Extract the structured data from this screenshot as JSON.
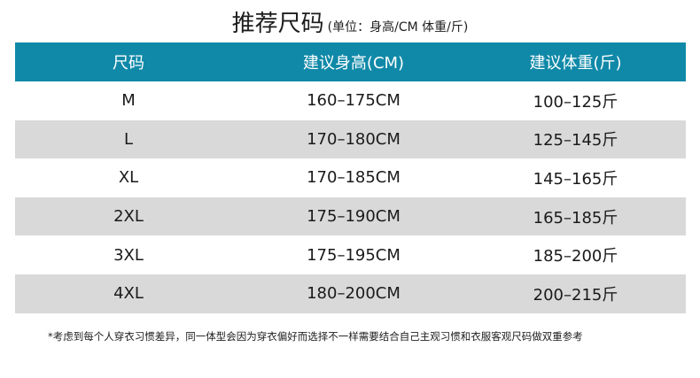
{
  "title": {
    "main": "推荐尺码",
    "sub": "(单位：身高/CM 体重/斤)"
  },
  "table": {
    "headers": [
      "尺码",
      "建议身高(CM)",
      "建议体重(斤)"
    ],
    "rows": [
      [
        "M",
        "160–175CM",
        "100–125斤"
      ],
      [
        "L",
        "170–180CM",
        "125–145斤"
      ],
      [
        "XL",
        "170–185CM",
        "145–165斤"
      ],
      [
        "2XL",
        "175–190CM",
        "165–185斤"
      ],
      [
        "3XL",
        "175–195CM",
        "185–200斤"
      ],
      [
        "4XL",
        "180–200CM",
        "200–215斤"
      ]
    ]
  },
  "colors": {
    "header_bg": "#1089a8",
    "header_text": "#ffffff",
    "row_shade": "#d9d9d9"
  },
  "note": "*考虑到每个人穿衣习惯差异，同一体型会因为穿衣偏好而选择不一样需要结合自己主观习惯和衣服客观尺码做双重参考"
}
